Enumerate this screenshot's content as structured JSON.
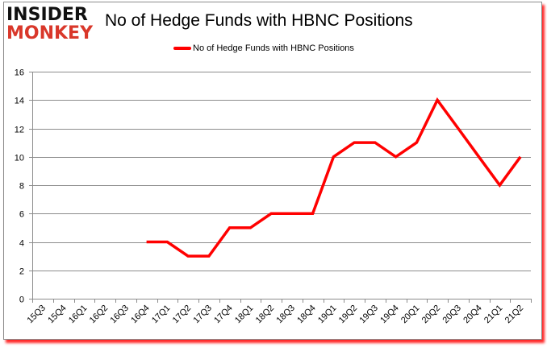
{
  "logo": {
    "line1": "INSIDER",
    "line2": "MONKEY"
  },
  "colors": {
    "series": "#ff0000",
    "grid": "#8c8c8c",
    "logo_red": "#d9372a",
    "shadow": "#ff0000"
  },
  "chart_data": {
    "type": "line",
    "title": "No of Hedge Funds with HBNC Positions",
    "xlabel": "",
    "ylabel": "",
    "ylim": [
      0,
      16
    ],
    "yticks": [
      0,
      2,
      4,
      6,
      8,
      10,
      12,
      14,
      16
    ],
    "grid": true,
    "legend_position": "top",
    "categories": [
      "15Q3",
      "15Q4",
      "16Q1",
      "16Q2",
      "16Q3",
      "16Q4",
      "17Q1",
      "17Q2",
      "17Q3",
      "17Q4",
      "18Q1",
      "18Q2",
      "18Q3",
      "18Q4",
      "19Q1",
      "19Q2",
      "19Q3",
      "19Q4",
      "20Q1",
      "20Q2",
      "20Q3",
      "20Q4",
      "21Q1",
      "21Q2"
    ],
    "series": [
      {
        "name": "No of Hedge Funds with HBNC Positions",
        "color": "#ff0000",
        "values": [
          null,
          null,
          null,
          null,
          null,
          4,
          4,
          3,
          3,
          5,
          5,
          6,
          6,
          6,
          10,
          11,
          11,
          10,
          11,
          14,
          12,
          10,
          8,
          10
        ]
      }
    ]
  }
}
